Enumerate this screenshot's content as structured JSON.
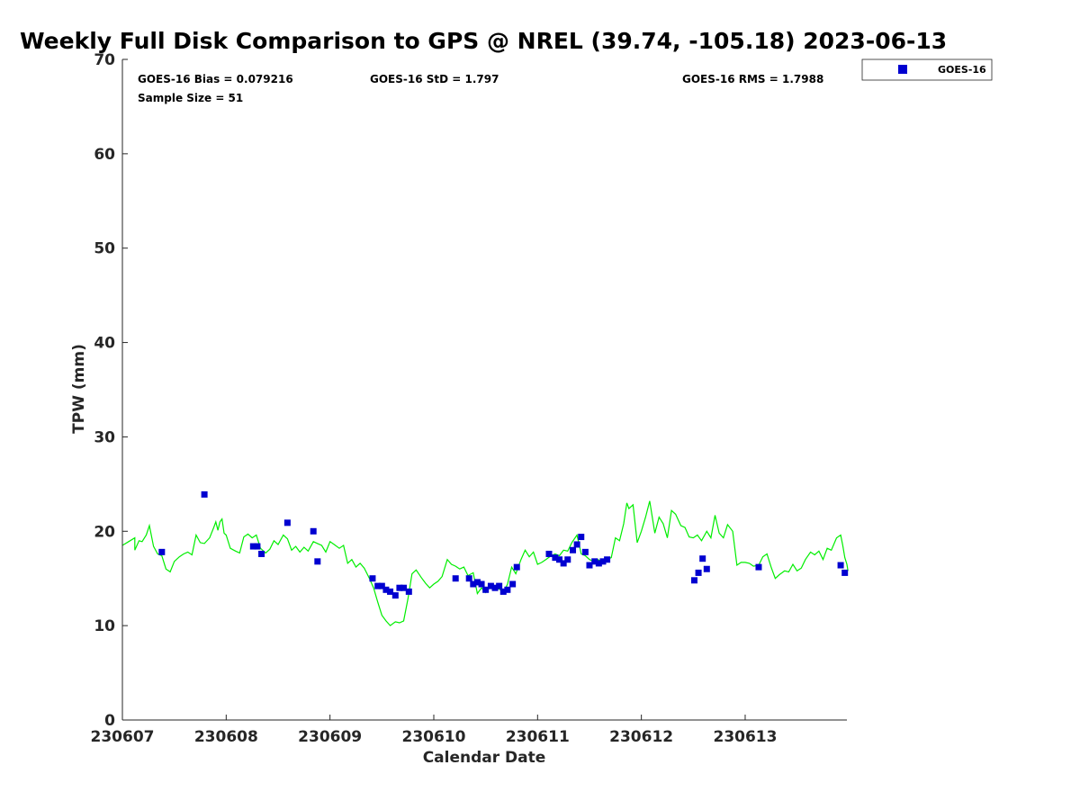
{
  "chart_data": {
    "type": "scatter",
    "title": "Weekly Full Disk Comparison to GPS @ NREL (39.74, -105.18) 2023-06-13",
    "xlabel": "Calendar Date",
    "ylabel": "TPW (mm)",
    "xlim": [
      0,
      6.98
    ],
    "ylim": [
      0,
      70
    ],
    "x_ticks": [
      {
        "value": 0,
        "label": "230607"
      },
      {
        "value": 1,
        "label": "230608"
      },
      {
        "value": 2,
        "label": "230609"
      },
      {
        "value": 3,
        "label": "230610"
      },
      {
        "value": 4,
        "label": "230611"
      },
      {
        "value": 5,
        "label": "230612"
      },
      {
        "value": 6,
        "label": "230613"
      }
    ],
    "y_ticks": [
      0,
      10,
      20,
      30,
      40,
      50,
      60,
      70
    ],
    "grid": false,
    "legend_position": "top-right",
    "stats": {
      "bias": "GOES-16 Bias = 0.079216",
      "std": "GOES-16 StD = 1.797",
      "rms": "GOES-16 RMS = 1.7988",
      "sample_size": "Sample Size = 51"
    },
    "series": [
      {
        "name": "GOES-16",
        "kind": "scatter",
        "color": "#0000d0",
        "marker": "square",
        "points": [
          [
            0.38,
            17.8
          ],
          [
            0.79,
            23.9
          ],
          [
            1.26,
            18.4
          ],
          [
            1.3,
            18.4
          ],
          [
            1.34,
            17.6
          ],
          [
            1.59,
            20.9
          ],
          [
            1.84,
            20.0
          ],
          [
            1.88,
            16.8
          ],
          [
            2.41,
            15.0
          ],
          [
            2.46,
            14.2
          ],
          [
            2.5,
            14.2
          ],
          [
            2.54,
            13.8
          ],
          [
            2.58,
            13.6
          ],
          [
            2.63,
            13.2
          ],
          [
            2.67,
            14.0
          ],
          [
            2.71,
            14.0
          ],
          [
            2.76,
            13.6
          ],
          [
            3.21,
            15.0
          ],
          [
            3.34,
            15.0
          ],
          [
            3.38,
            14.4
          ],
          [
            3.42,
            14.6
          ],
          [
            3.46,
            14.4
          ],
          [
            3.5,
            13.8
          ],
          [
            3.55,
            14.2
          ],
          [
            3.59,
            14.0
          ],
          [
            3.63,
            14.2
          ],
          [
            3.67,
            13.6
          ],
          [
            3.71,
            13.8
          ],
          [
            3.76,
            14.4
          ],
          [
            3.8,
            16.2
          ],
          [
            4.11,
            17.6
          ],
          [
            4.17,
            17.2
          ],
          [
            4.21,
            17.0
          ],
          [
            4.25,
            16.6
          ],
          [
            4.29,
            17.0
          ],
          [
            4.34,
            18.0
          ],
          [
            4.38,
            18.6
          ],
          [
            4.42,
            19.4
          ],
          [
            4.46,
            17.8
          ],
          [
            4.5,
            16.4
          ],
          [
            4.55,
            16.8
          ],
          [
            4.59,
            16.6
          ],
          [
            4.63,
            16.8
          ],
          [
            4.67,
            17.0
          ],
          [
            5.51,
            14.8
          ],
          [
            5.55,
            15.6
          ],
          [
            5.59,
            17.1
          ],
          [
            5.63,
            16.0
          ],
          [
            6.13,
            16.2
          ],
          [
            6.92,
            16.4
          ],
          [
            6.96,
            15.6
          ]
        ]
      },
      {
        "name": "GPS",
        "kind": "line",
        "color": "#00ee00",
        "points": [
          [
            0.0,
            18.5
          ],
          [
            0.06,
            18.9
          ],
          [
            0.12,
            19.3
          ],
          [
            0.12,
            18.0
          ],
          [
            0.16,
            19.0
          ],
          [
            0.19,
            18.9
          ],
          [
            0.23,
            19.6
          ],
          [
            0.26,
            20.6
          ],
          [
            0.3,
            18.4
          ],
          [
            0.34,
            17.6
          ],
          [
            0.38,
            17.4
          ],
          [
            0.42,
            16.0
          ],
          [
            0.46,
            15.7
          ],
          [
            0.5,
            16.8
          ],
          [
            0.55,
            17.3
          ],
          [
            0.59,
            17.6
          ],
          [
            0.63,
            17.8
          ],
          [
            0.67,
            17.5
          ],
          [
            0.71,
            19.6
          ],
          [
            0.75,
            18.8
          ],
          [
            0.79,
            18.7
          ],
          [
            0.84,
            19.3
          ],
          [
            0.88,
            20.4
          ],
          [
            0.9,
            21.0
          ],
          [
            0.92,
            20.1
          ],
          [
            0.94,
            21.0
          ],
          [
            0.96,
            21.3
          ],
          [
            0.98,
            19.8
          ],
          [
            1.0,
            19.6
          ],
          [
            1.04,
            18.2
          ],
          [
            1.09,
            17.9
          ],
          [
            1.13,
            17.7
          ],
          [
            1.17,
            19.4
          ],
          [
            1.21,
            19.7
          ],
          [
            1.25,
            19.3
          ],
          [
            1.29,
            19.6
          ],
          [
            1.33,
            18.2
          ],
          [
            1.38,
            17.7
          ],
          [
            1.42,
            18.1
          ],
          [
            1.46,
            19.0
          ],
          [
            1.5,
            18.6
          ],
          [
            1.55,
            19.6
          ],
          [
            1.59,
            19.2
          ],
          [
            1.63,
            18.0
          ],
          [
            1.67,
            18.4
          ],
          [
            1.71,
            17.8
          ],
          [
            1.75,
            18.3
          ],
          [
            1.79,
            17.9
          ],
          [
            1.84,
            18.9
          ],
          [
            1.88,
            18.7
          ],
          [
            1.92,
            18.5
          ],
          [
            1.96,
            17.8
          ],
          [
            2.0,
            18.9
          ],
          [
            2.04,
            18.6
          ],
          [
            2.09,
            18.2
          ],
          [
            2.13,
            18.5
          ],
          [
            2.17,
            16.6
          ],
          [
            2.21,
            17.0
          ],
          [
            2.25,
            16.2
          ],
          [
            2.29,
            16.6
          ],
          [
            2.33,
            16.1
          ],
          [
            2.38,
            15.0
          ],
          [
            2.42,
            14.0
          ],
          [
            2.46,
            12.5
          ],
          [
            2.5,
            11.1
          ],
          [
            2.54,
            10.5
          ],
          [
            2.58,
            10.0
          ],
          [
            2.63,
            10.4
          ],
          [
            2.67,
            10.3
          ],
          [
            2.71,
            10.5
          ],
          [
            2.75,
            12.8
          ],
          [
            2.79,
            15.5
          ],
          [
            2.83,
            15.9
          ],
          [
            2.88,
            15.1
          ],
          [
            2.92,
            14.5
          ],
          [
            2.96,
            14.0
          ],
          [
            3.0,
            14.4
          ],
          [
            3.04,
            14.7
          ],
          [
            3.08,
            15.2
          ],
          [
            3.13,
            17.0
          ],
          [
            3.17,
            16.5
          ],
          [
            3.21,
            16.3
          ],
          [
            3.25,
            16.0
          ],
          [
            3.29,
            16.2
          ],
          [
            3.33,
            15.3
          ],
          [
            3.38,
            15.6
          ],
          [
            3.42,
            13.4
          ],
          [
            3.46,
            14.0
          ],
          [
            3.5,
            13.5
          ],
          [
            3.55,
            14.4
          ],
          [
            3.59,
            13.8
          ],
          [
            3.63,
            13.9
          ],
          [
            3.67,
            13.5
          ],
          [
            3.71,
            14.4
          ],
          [
            3.75,
            16.2
          ],
          [
            3.79,
            15.5
          ],
          [
            3.84,
            17.0
          ],
          [
            3.88,
            18.0
          ],
          [
            3.92,
            17.3
          ],
          [
            3.96,
            17.8
          ],
          [
            4.0,
            16.5
          ],
          [
            4.04,
            16.7
          ],
          [
            4.08,
            17.0
          ],
          [
            4.13,
            17.4
          ],
          [
            4.17,
            17.6
          ],
          [
            4.21,
            17.4
          ],
          [
            4.25,
            18.0
          ],
          [
            4.29,
            17.9
          ],
          [
            4.33,
            18.8
          ],
          [
            4.38,
            19.6
          ],
          [
            4.42,
            17.6
          ],
          [
            4.46,
            17.4
          ],
          [
            4.5,
            17.0
          ],
          [
            4.54,
            16.8
          ],
          [
            4.58,
            17.0
          ],
          [
            4.63,
            16.7
          ],
          [
            4.67,
            17.0
          ],
          [
            4.71,
            17.2
          ],
          [
            4.75,
            19.3
          ],
          [
            4.79,
            19.0
          ],
          [
            4.83,
            20.8
          ],
          [
            4.86,
            23.0
          ],
          [
            4.88,
            22.4
          ],
          [
            4.92,
            22.8
          ],
          [
            4.96,
            18.8
          ],
          [
            5.0,
            20.0
          ],
          [
            5.04,
            21.5
          ],
          [
            5.08,
            23.2
          ],
          [
            5.13,
            19.8
          ],
          [
            5.17,
            21.5
          ],
          [
            5.21,
            20.8
          ],
          [
            5.25,
            19.3
          ],
          [
            5.29,
            22.2
          ],
          [
            5.33,
            21.8
          ],
          [
            5.38,
            20.6
          ],
          [
            5.42,
            20.4
          ],
          [
            5.46,
            19.4
          ],
          [
            5.5,
            19.3
          ],
          [
            5.54,
            19.6
          ],
          [
            5.58,
            19.0
          ],
          [
            5.63,
            20.0
          ],
          [
            5.67,
            19.3
          ],
          [
            5.71,
            21.7
          ],
          [
            5.75,
            19.8
          ],
          [
            5.79,
            19.3
          ],
          [
            5.83,
            20.7
          ],
          [
            5.88,
            20.0
          ],
          [
            5.92,
            16.4
          ],
          [
            5.96,
            16.7
          ],
          [
            6.0,
            16.7
          ],
          [
            6.04,
            16.6
          ],
          [
            6.08,
            16.3
          ],
          [
            6.13,
            16.4
          ],
          [
            6.17,
            17.3
          ],
          [
            6.21,
            17.6
          ],
          [
            6.25,
            16.2
          ],
          [
            6.29,
            15.0
          ],
          [
            6.33,
            15.4
          ],
          [
            6.38,
            15.8
          ],
          [
            6.42,
            15.7
          ],
          [
            6.46,
            16.5
          ],
          [
            6.5,
            15.8
          ],
          [
            6.54,
            16.1
          ],
          [
            6.58,
            17.0
          ],
          [
            6.63,
            17.8
          ],
          [
            6.67,
            17.5
          ],
          [
            6.71,
            17.9
          ],
          [
            6.75,
            17.0
          ],
          [
            6.79,
            18.2
          ],
          [
            6.83,
            18.0
          ],
          [
            6.88,
            19.3
          ],
          [
            6.92,
            19.6
          ],
          [
            6.94,
            18.5
          ],
          [
            6.96,
            17.2
          ],
          [
            6.98,
            16.5
          ],
          [
            6.99,
            15.8
          ]
        ]
      }
    ]
  }
}
